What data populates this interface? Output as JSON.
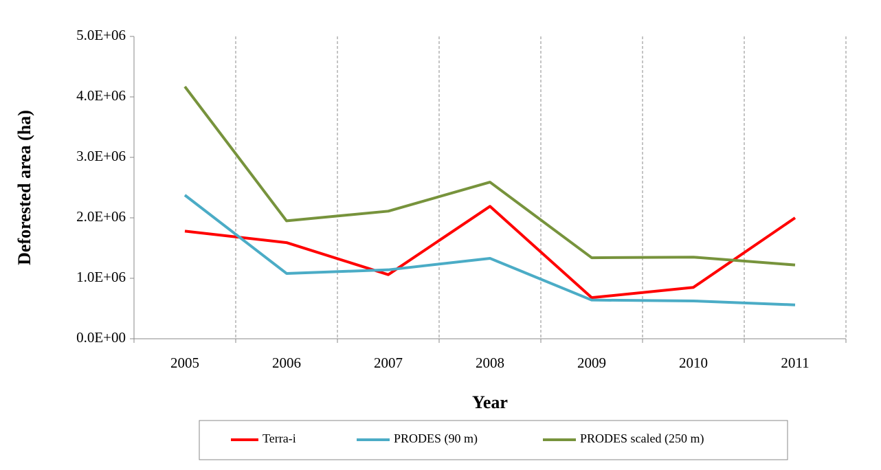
{
  "chart_data": {
    "type": "line",
    "x_label": "Year",
    "y_label": "Deforested area (ha)",
    "categories": [
      "2005",
      "2006",
      "2007",
      "2008",
      "2009",
      "2010",
      "2011"
    ],
    "series": [
      {
        "name": "Terra-i",
        "color": "#ff0000",
        "values": [
          1780000,
          1590000,
          1060000,
          2190000,
          680000,
          850000,
          2000000
        ]
      },
      {
        "name": "PRODES (90 m)",
        "color": "#4bacc6",
        "values": [
          2375000,
          1080000,
          1140000,
          1330000,
          640000,
          625000,
          560000
        ]
      },
      {
        "name": "PRODES scaled (250 m)",
        "color": "#77933c",
        "values": [
          4170000,
          1950000,
          2110000,
          2590000,
          1340000,
          1350000,
          1220000
        ]
      }
    ],
    "ylim": [
      0,
      5000000
    ],
    "yticks": [
      {
        "value": 0,
        "label": "0.0E+00"
      },
      {
        "value": 1000000,
        "label": "1.0E+06"
      },
      {
        "value": 2000000,
        "label": "2.0E+06"
      },
      {
        "value": 3000000,
        "label": "3.0E+06"
      },
      {
        "value": 4000000,
        "label": "4.0E+06"
      },
      {
        "value": 5000000,
        "label": "5.0E+06"
      }
    ],
    "legend": "bottom"
  }
}
